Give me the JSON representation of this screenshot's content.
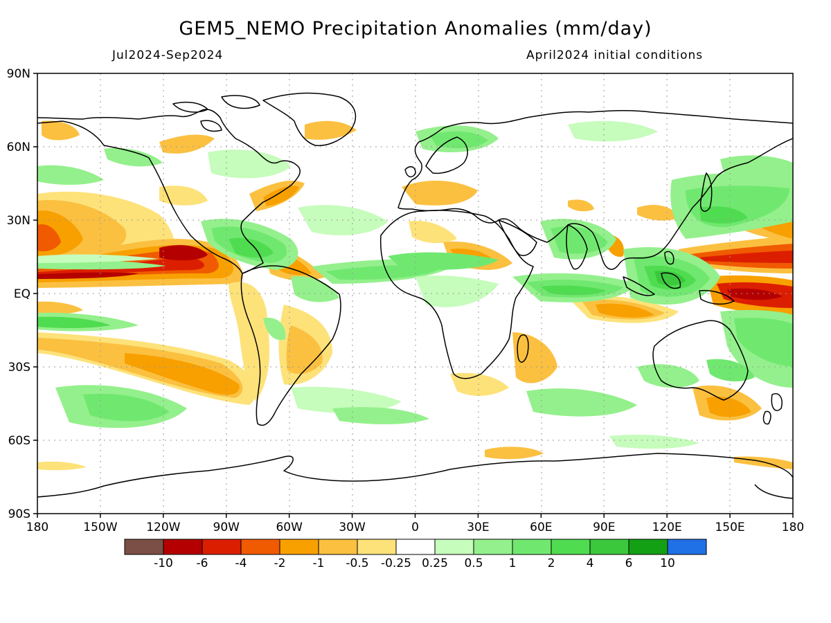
{
  "title": "GEM5_NEMO Precipitation Anomalies (mm/day)",
  "period": "Jul2024-Sep2024",
  "init": "April2024 initial conditions",
  "axes": {
    "lat_ticks": [
      {
        "label": "90N",
        "lat": 90
      },
      {
        "label": "60N",
        "lat": 60
      },
      {
        "label": "30N",
        "lat": 30
      },
      {
        "label": "EQ",
        "lat": 0
      },
      {
        "label": "30S",
        "lat": -30
      },
      {
        "label": "60S",
        "lat": -60
      },
      {
        "label": "90S",
        "lat": -90
      }
    ],
    "lon_ticks": [
      {
        "label": "180",
        "lon": -180
      },
      {
        "label": "150W",
        "lon": -150
      },
      {
        "label": "120W",
        "lon": -120
      },
      {
        "label": "90W",
        "lon": -90
      },
      {
        "label": "60W",
        "lon": -60
      },
      {
        "label": "30W",
        "lon": -30
      },
      {
        "label": "0",
        "lon": 0
      },
      {
        "label": "30E",
        "lon": 30
      },
      {
        "label": "60E",
        "lon": 60
      },
      {
        "label": "90E",
        "lon": 90
      },
      {
        "label": "120E",
        "lon": 120
      },
      {
        "label": "150E",
        "lon": 150
      },
      {
        "label": "180",
        "lon": 180
      }
    ]
  },
  "colorbar": {
    "colors": [
      "#7b4f45",
      "#b40000",
      "#dc1e00",
      "#f05a00",
      "#f8a000",
      "#fbc040",
      "#fde27a",
      "#ffffff",
      "#c6fcbc",
      "#94f08c",
      "#70e870",
      "#50dc50",
      "#3cc83c",
      "#14a014",
      "#2070e6"
    ],
    "labels": [
      "-10",
      "-6",
      "-4",
      "-2",
      "-1",
      "-0.5",
      "-0.25",
      "0.25",
      "0.5",
      "1",
      "2",
      "4",
      "6",
      "10"
    ]
  }
}
